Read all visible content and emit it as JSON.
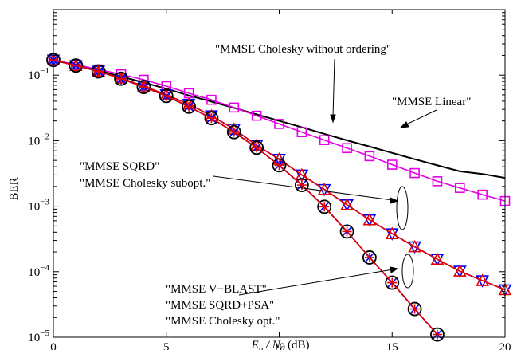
{
  "chart_data": {
    "type": "line",
    "x_axis": {
      "label_main": "E",
      "label_sub1": "b",
      "label_slash": " / N",
      "label_sub2": "0",
      "label_unit": " (dB)",
      "range": [
        0,
        20
      ],
      "ticks": [
        0,
        5,
        10,
        15,
        20
      ],
      "tick_labels": [
        "0",
        "5",
        "10",
        "15",
        "20"
      ]
    },
    "y_axis": {
      "label": "BER",
      "scale": "log",
      "range": [
        1e-05,
        1
      ],
      "decades": [
        {
          "value": 0.1,
          "base": "10",
          "exp": "−1"
        },
        {
          "value": 0.01,
          "base": "10",
          "exp": "−2"
        },
        {
          "value": 0.001,
          "base": "10",
          "exp": "−3"
        },
        {
          "value": 0.0001,
          "base": "10",
          "exp": "−4"
        },
        {
          "value": 1e-05,
          "base": "10",
          "exp": "−5"
        }
      ]
    },
    "grid": false,
    "series": [
      {
        "id": "linear",
        "color": "#000000",
        "marker": "none",
        "x": [
          0,
          1,
          2,
          3,
          4,
          5,
          6,
          7,
          8,
          9,
          10,
          11,
          12,
          13,
          14,
          15,
          16,
          17,
          18,
          19,
          20
        ],
        "y": [
          0.17,
          0.142,
          0.117,
          0.095,
          0.077,
          0.062,
          0.049,
          0.0395,
          0.0315,
          0.0252,
          0.0201,
          0.016,
          0.0127,
          0.0101,
          0.0081,
          0.0065,
          0.0052,
          0.0042,
          0.0034,
          0.0031,
          0.0027
        ]
      },
      {
        "id": "chol-no-order",
        "color": "#e600e6",
        "marker": "square",
        "x": [
          0,
          1,
          2,
          3,
          4,
          5,
          6,
          7,
          8,
          9,
          10,
          11,
          12,
          13,
          14,
          15,
          16,
          17,
          18,
          19,
          20
        ],
        "y": [
          0.17,
          0.145,
          0.122,
          0.103,
          0.085,
          0.068,
          0.053,
          0.042,
          0.032,
          0.024,
          0.018,
          0.0135,
          0.0102,
          0.0077,
          0.0058,
          0.0043,
          0.0032,
          0.0024,
          0.0019,
          0.0015,
          0.0012
        ]
      },
      {
        "id": "sqrd",
        "color": "#0000ff",
        "marker": "triangle-down",
        "x": [
          0,
          1,
          2,
          3,
          4,
          5,
          6,
          7,
          8,
          9,
          10,
          11,
          12,
          13,
          14,
          15,
          16,
          17,
          18,
          19,
          20
        ],
        "y": [
          0.17,
          0.14,
          0.115,
          0.09,
          0.068,
          0.05,
          0.036,
          0.024,
          0.015,
          0.0085,
          0.0052,
          0.003,
          0.0018,
          0.00105,
          0.00062,
          0.00038,
          0.00024,
          0.000155,
          0.000102,
          7.3e-05,
          5.3e-05
        ]
      },
      {
        "id": "chol-subopt",
        "color": "#e60000",
        "marker": "triangle-up",
        "x": [
          0,
          1,
          2,
          3,
          4,
          5,
          6,
          7,
          8,
          9,
          10,
          11,
          12,
          13,
          14,
          15,
          16,
          17,
          18,
          19,
          20
        ],
        "y": [
          0.17,
          0.14,
          0.115,
          0.09,
          0.068,
          0.05,
          0.036,
          0.024,
          0.015,
          0.0085,
          0.0052,
          0.003,
          0.0018,
          0.00105,
          0.00062,
          0.00038,
          0.00024,
          0.000155,
          0.000102,
          7.3e-05,
          5.3e-05
        ]
      },
      {
        "id": "vblast",
        "color": "#000000",
        "marker": "circle",
        "x": [
          0,
          1,
          2,
          3,
          4,
          5,
          6,
          7,
          8,
          9,
          10,
          11,
          12,
          13,
          14,
          15,
          16,
          17
        ],
        "y": [
          0.17,
          0.14,
          0.114,
          0.088,
          0.066,
          0.048,
          0.033,
          0.022,
          0.0135,
          0.0078,
          0.0042,
          0.0021,
          0.00098,
          0.00041,
          0.000165,
          6.8e-05,
          2.7e-05,
          1.1e-05
        ]
      },
      {
        "id": "sqrd-psa",
        "color": "#0000ff",
        "marker": "x",
        "x": [
          0,
          1,
          2,
          3,
          4,
          5,
          6,
          7,
          8,
          9,
          10,
          11,
          12,
          13,
          14,
          15,
          16,
          17
        ],
        "y": [
          0.17,
          0.14,
          0.114,
          0.088,
          0.066,
          0.048,
          0.033,
          0.022,
          0.0135,
          0.0078,
          0.0042,
          0.0021,
          0.00098,
          0.00041,
          0.000165,
          6.8e-05,
          2.7e-05,
          1.1e-05
        ]
      },
      {
        "id": "chol-opt",
        "color": "#e60000",
        "marker": "plus",
        "x": [
          0,
          1,
          2,
          3,
          4,
          5,
          6,
          7,
          8,
          9,
          10,
          11,
          12,
          13,
          14,
          15,
          16,
          17
        ],
        "y": [
          0.17,
          0.14,
          0.114,
          0.088,
          0.066,
          0.048,
          0.033,
          0.022,
          0.0135,
          0.0078,
          0.0042,
          0.0021,
          0.00098,
          0.00041,
          0.000165,
          6.8e-05,
          2.7e-05,
          1.1e-05
        ]
      }
    ],
    "annotations": {
      "no_order": "\"MMSE Cholesky without ordering\"",
      "linear": "\"MMSE Linear\"",
      "sqrd": "\"MMSE SQRD\"",
      "chol_subopt": "\"MMSE Cholesky subopt.\"",
      "vblast": "\"MMSE V−BLAST\"",
      "sqrd_psa": "\"MMSE SQRD+PSA\"",
      "chol_opt": "\"MMSE Cholesky opt.\""
    }
  }
}
